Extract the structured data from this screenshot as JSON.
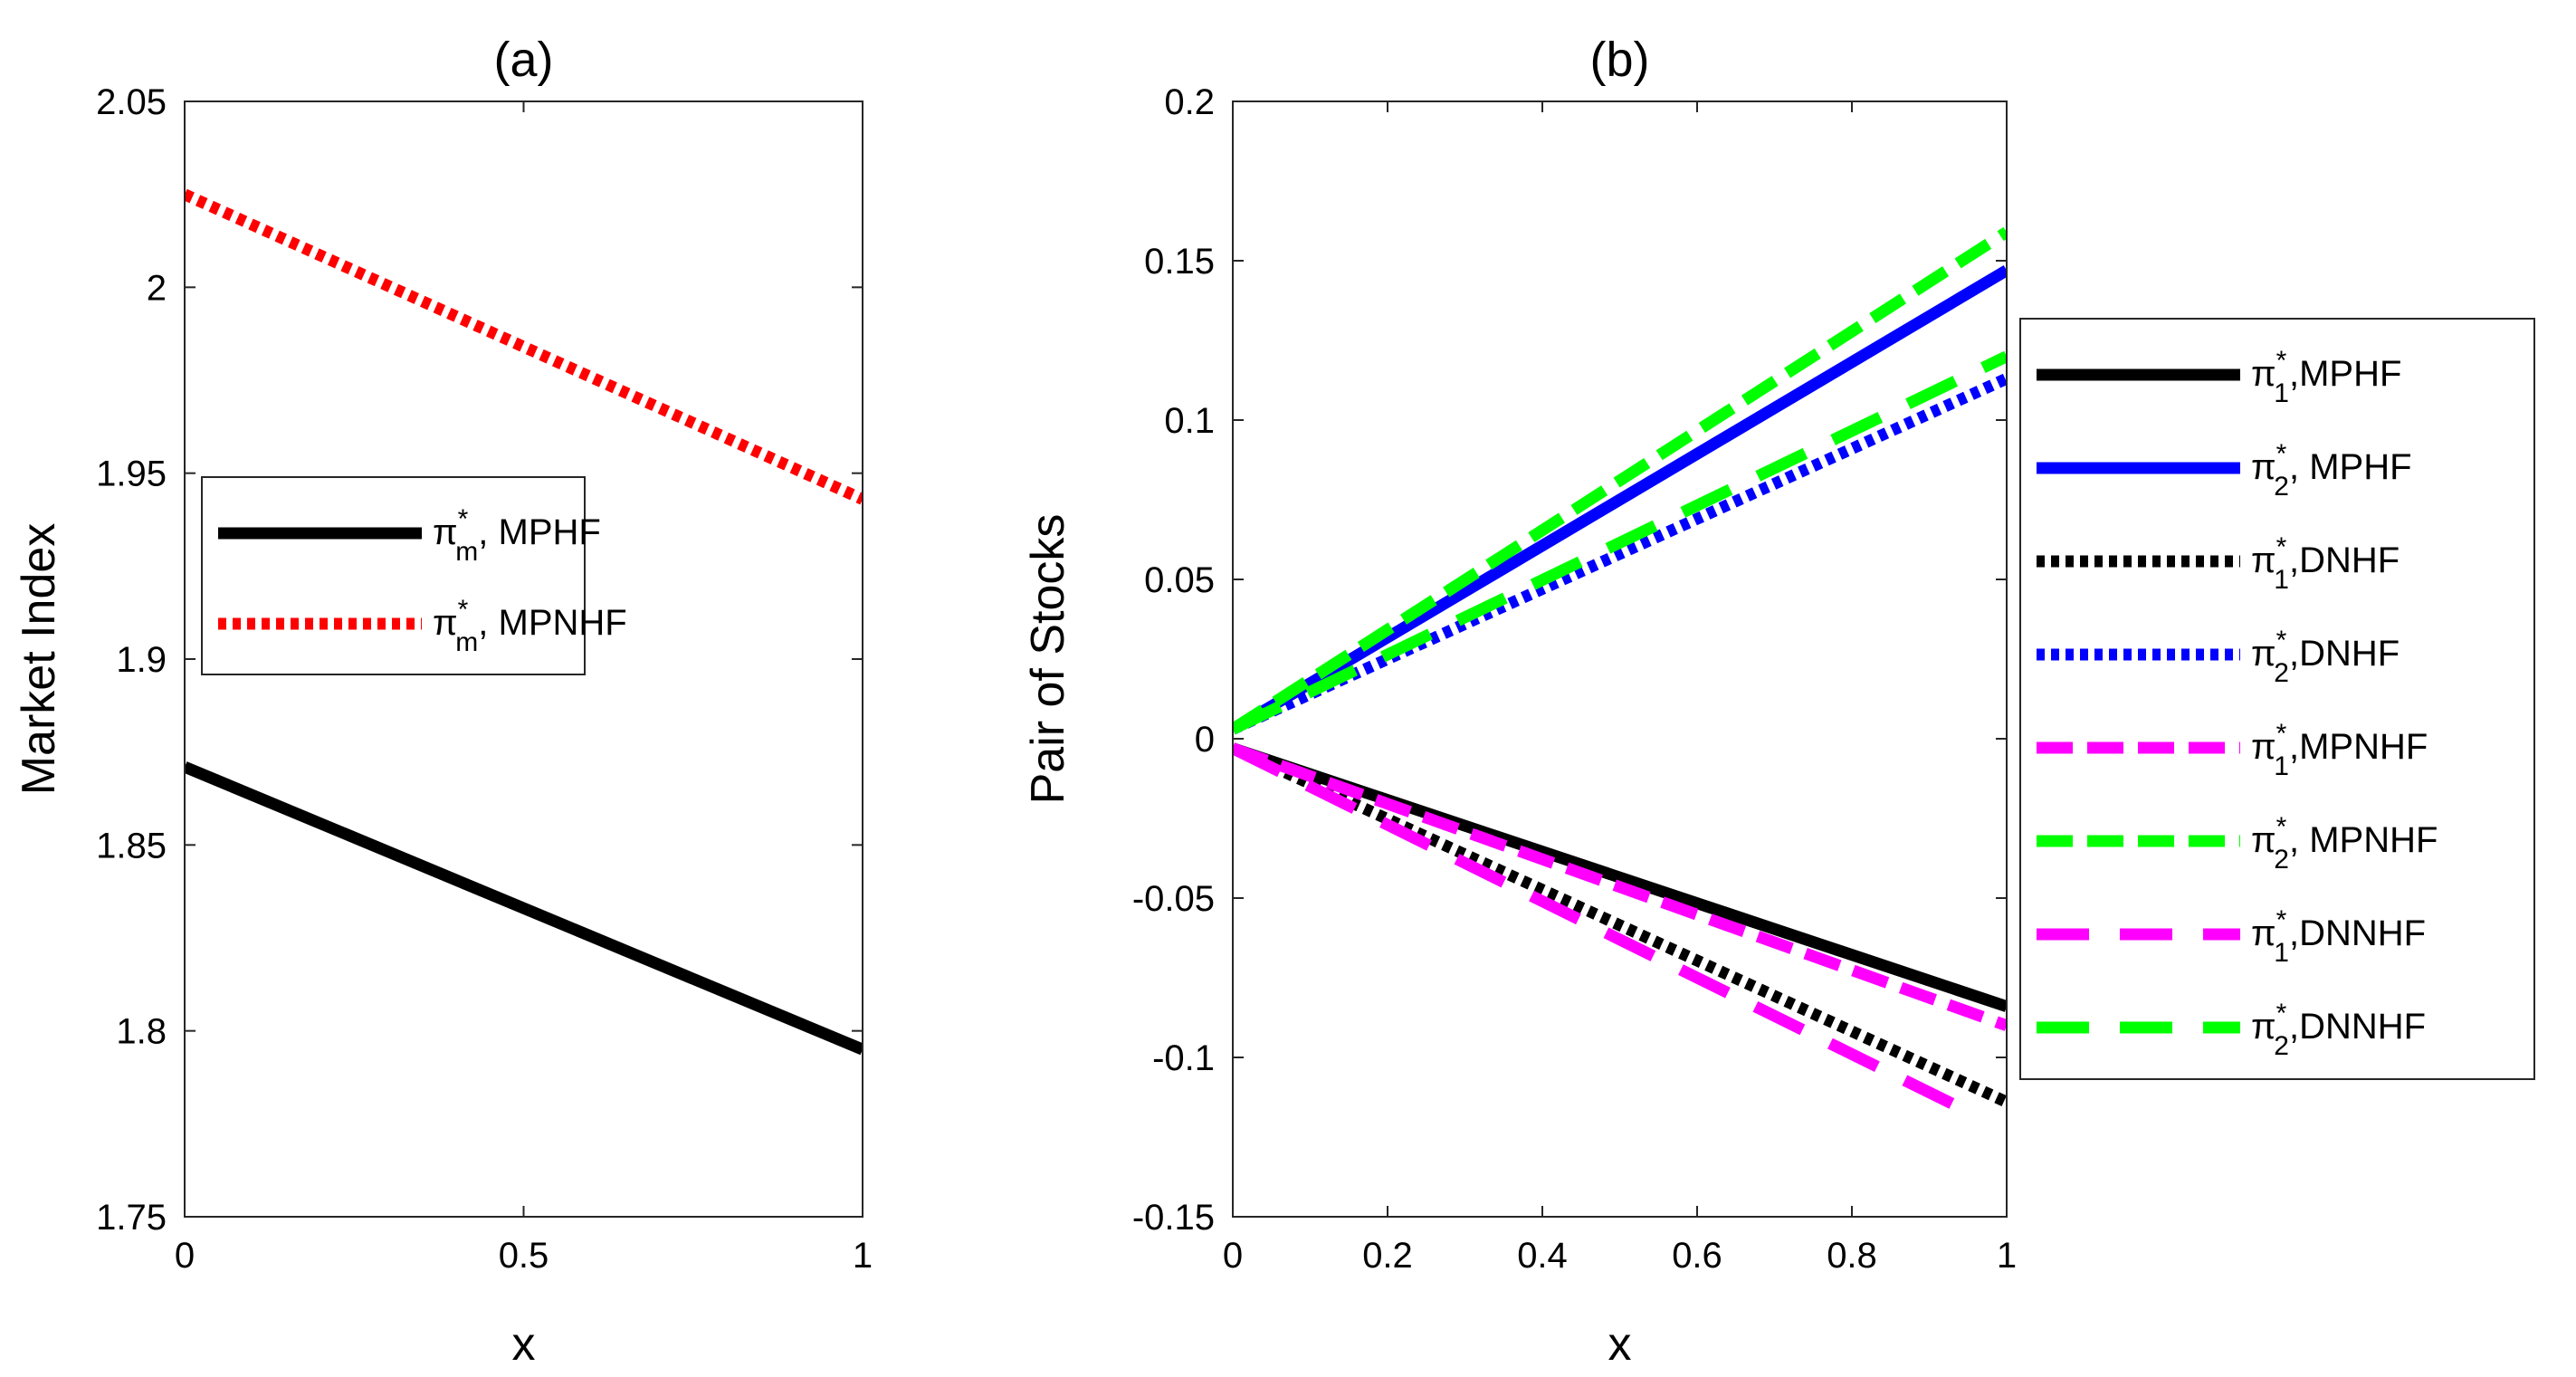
{
  "chart_data": [
    {
      "type": "line",
      "title": "(a)",
      "xlabel": "x",
      "ylabel": "Market Index",
      "xlim": [
        0,
        1
      ],
      "ylim": [
        1.75,
        2.05
      ],
      "xticks": [
        0,
        0.5,
        1
      ],
      "xtick_labels": [
        "0",
        "0.5",
        "1"
      ],
      "yticks": [
        1.75,
        1.8,
        1.85,
        1.9,
        1.95,
        2.0,
        2.05
      ],
      "ytick_labels": [
        "1.75",
        "1.8",
        "1.85",
        "1.9",
        "1.95",
        "2",
        "2.05"
      ],
      "legend_position": "center-left",
      "series": [
        {
          "name": "π*m, MPHF",
          "legend_sym": "π",
          "legend_sup": "*",
          "legend_sub": "m",
          "legend_tail": ", MPHF",
          "color": "#000000",
          "style": "solid",
          "x": [
            0,
            1
          ],
          "y": [
            1.871,
            1.795
          ]
        },
        {
          "name": "π*m, MPNHF",
          "legend_sym": "π",
          "legend_sup": "*",
          "legend_sub": "m",
          "legend_tail": ", MPNHF",
          "color": "#ff0000",
          "style": "dotted",
          "x": [
            0,
            1
          ],
          "y": [
            2.025,
            1.943
          ]
        }
      ]
    },
    {
      "type": "line",
      "title": "(b)",
      "xlabel": "x",
      "ylabel": "Pair of Stocks",
      "xlim": [
        0,
        1
      ],
      "ylim": [
        -0.15,
        0.2
      ],
      "xticks": [
        0,
        0.2,
        0.4,
        0.6,
        0.8,
        1
      ],
      "xtick_labels": [
        "0",
        "0.2",
        "0.4",
        "0.6",
        "0.8",
        "1"
      ],
      "yticks": [
        -0.15,
        -0.1,
        -0.05,
        0,
        0.05,
        0.1,
        0.15,
        0.2
      ],
      "ytick_labels": [
        "-0.15",
        "-0.1",
        "-0.05",
        "0",
        "0.05",
        "0.1",
        "0.15",
        "0.2"
      ],
      "legend_position": "outside-right",
      "series": [
        {
          "name": "π*1,MPHF",
          "legend_sym": "π",
          "legend_sup": "*",
          "legend_sub": "1",
          "legend_tail": ",MPHF",
          "color": "#000000",
          "style": "solid",
          "x": [
            0,
            1
          ],
          "y": [
            -0.003,
            -0.084
          ]
        },
        {
          "name": "π*2, MPHF",
          "legend_sym": "π",
          "legend_sup": "*",
          "legend_sub": "2",
          "legend_tail": ", MPHF",
          "color": "#0000ff",
          "style": "solid",
          "x": [
            0,
            1
          ],
          "y": [
            0.003,
            0.147
          ]
        },
        {
          "name": "π*1,DNHF",
          "legend_sym": "π",
          "legend_sup": "*",
          "legend_sub": "1",
          "legend_tail": ",DNHF",
          "color": "#000000",
          "style": "dotted",
          "x": [
            0,
            1
          ],
          "y": [
            -0.003,
            -0.114
          ]
        },
        {
          "name": "π*2,DNHF",
          "legend_sym": "π",
          "legend_sup": "*",
          "legend_sub": "2",
          "legend_tail": ",DNHF",
          "color": "#0000ff",
          "style": "dotted",
          "x": [
            0,
            1
          ],
          "y": [
            0.003,
            0.113
          ]
        },
        {
          "name": "π*1,MPNHF",
          "legend_sym": "π",
          "legend_sup": "*",
          "legend_sub": "1",
          "legend_tail": ",MPNHF",
          "color": "#ff00ff",
          "style": "dashed",
          "x": [
            0,
            1
          ],
          "y": [
            -0.003,
            -0.09
          ]
        },
        {
          "name": "π*2, MPNHF",
          "legend_sym": "π",
          "legend_sup": "*",
          "legend_sub": "2",
          "legend_tail": ", MPNHF",
          "color": "#00ff00",
          "style": "dashed",
          "x": [
            0,
            1
          ],
          "y": [
            0.003,
            0.159
          ]
        },
        {
          "name": "π*1,DNNHF",
          "legend_sym": "π",
          "legend_sup": "*",
          "legend_sub": "1",
          "legend_tail": ",DNNHF",
          "color": "#ff00ff",
          "style": "longdash",
          "x": [
            0,
            0.95
          ],
          "y": [
            -0.003,
            -0.117
          ]
        },
        {
          "name": "π*2,DNNHF",
          "legend_sym": "π",
          "legend_sup": "*",
          "legend_sub": "2",
          "legend_tail": ",DNNHF",
          "color": "#00ff00",
          "style": "longdash",
          "x": [
            0,
            1
          ],
          "y": [
            0.003,
            0.12
          ]
        }
      ]
    }
  ]
}
